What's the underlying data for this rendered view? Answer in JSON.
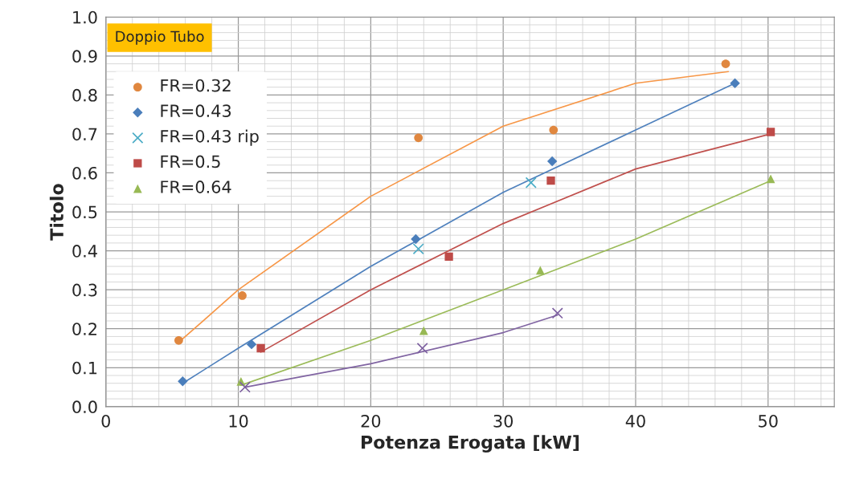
{
  "chart_data": {
    "type": "scatter",
    "xlabel": "Potenza Erogata [kW]",
    "ylabel": "Titolo",
    "xlim": [
      0,
      55
    ],
    "ylim": [
      0,
      1
    ],
    "xticks": [
      0,
      10,
      20,
      30,
      40,
      50
    ],
    "yticks": [
      {
        "value": 0,
        "label": "0.0"
      },
      0.1,
      0.2,
      0.3,
      0.4,
      0.5,
      0.6,
      0.7,
      0.8,
      0.9,
      {
        "value": 1,
        "label": "1.0"
      }
    ],
    "grid": true,
    "legend": "top left",
    "annotations": [
      "Doppio Tubo"
    ],
    "series": [
      {
        "name": "FR=0.32",
        "marker": "circle",
        "color": "#e0873f",
        "x": [
          5.5,
          10.3,
          23.6,
          33.8,
          46.8
        ],
        "values": [
          0.17,
          0.285,
          0.69,
          0.71,
          0.88
        ]
      },
      {
        "name": "FR=0.43",
        "marker": "diamond",
        "color": "#4a7ebb",
        "x": [
          5.8,
          11,
          23.4,
          33.7,
          47.5
        ],
        "values": [
          0.065,
          0.16,
          0.43,
          0.63,
          0.83
        ]
      },
      {
        "name": "FR=0.43 rip",
        "marker": "cross",
        "color": "#4bacc6",
        "x": [
          23.6,
          32.1
        ],
        "values": [
          0.405,
          0.575
        ]
      },
      {
        "name": "FR=0.5",
        "marker": "square",
        "color": "#be4b48",
        "x": [
          11.7,
          25.9,
          33.6,
          50.2
        ],
        "values": [
          0.15,
          0.385,
          0.58,
          0.705
        ]
      },
      {
        "name": "FR=0.64",
        "marker": "triangle",
        "color": "#98b954",
        "x": [
          10.2,
          24,
          32.8,
          50.2
        ],
        "values": [
          0.065,
          0.195,
          0.35,
          0.585
        ]
      },
      {
        "marker": "cross",
        "color": "#7d60a0",
        "x": [
          10.5,
          23.9,
          34.1
        ],
        "values": [
          0.05,
          0.15,
          0.24
        ]
      },
      {
        "type": "line",
        "color": "#f79646",
        "x": [
          5.5,
          10,
          20,
          30,
          40,
          47
        ],
        "values": [
          0.165,
          0.3,
          0.54,
          0.72,
          0.83,
          0.86
        ]
      },
      {
        "type": "line",
        "color": "#4f81bd",
        "x": [
          5.8,
          10,
          20,
          30,
          40,
          47.5
        ],
        "values": [
          0.06,
          0.15,
          0.36,
          0.55,
          0.71,
          0.83
        ]
      },
      {
        "type": "line",
        "color": "#c0504d",
        "x": [
          11.7,
          20,
          30,
          40,
          50.2
        ],
        "values": [
          0.14,
          0.3,
          0.47,
          0.61,
          0.7
        ]
      },
      {
        "type": "line",
        "color": "#9bbb59",
        "x": [
          10.2,
          20,
          30,
          40,
          50.2
        ],
        "values": [
          0.055,
          0.17,
          0.3,
          0.43,
          0.58
        ]
      },
      {
        "type": "line",
        "color": "#8064a2",
        "x": [
          10.5,
          20,
          30,
          34.1
        ],
        "values": [
          0.05,
          0.11,
          0.19,
          0.235
        ]
      }
    ]
  }
}
